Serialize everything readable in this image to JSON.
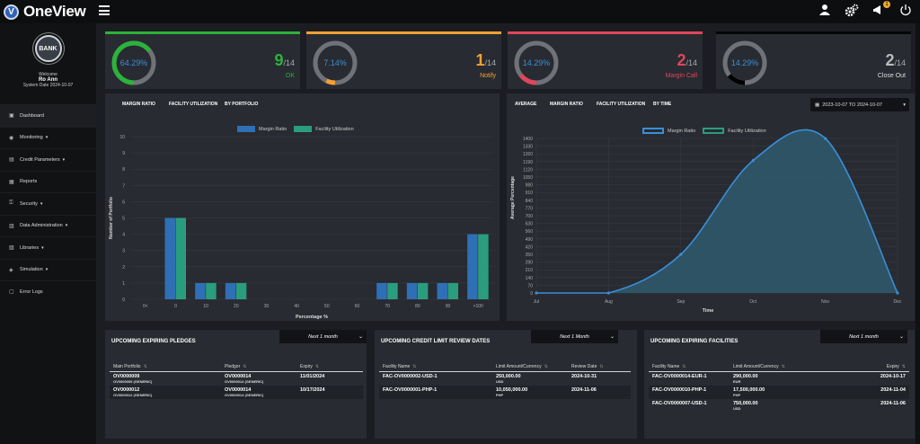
{
  "app": {
    "name": "OneView",
    "logo_letter": "V"
  },
  "topbar": {
    "notif_count": "1"
  },
  "profile": {
    "logo_text": "BANK",
    "welcome": "Welcome",
    "user": "Ro Ann",
    "system_date": "System Date 2024-10-07"
  },
  "nav": [
    {
      "label": "Dashboard",
      "icon": "▣",
      "caret": ""
    },
    {
      "label": "Monitoring",
      "icon": "◉",
      "caret": "▾"
    },
    {
      "label": "Credit Parameters",
      "icon": "▤",
      "caret": "▾"
    },
    {
      "label": "Reports",
      "icon": "▦",
      "caret": ""
    },
    {
      "label": "Security",
      "icon": "⚿",
      "caret": "▾"
    },
    {
      "label": "Data Administration",
      "icon": "▥",
      "caret": "▾"
    },
    {
      "label": "Libraries",
      "icon": "▧",
      "caret": "▾"
    },
    {
      "label": "Simulation",
      "icon": "◈",
      "caret": "▾"
    },
    {
      "label": "Error Logs",
      "icon": "▢",
      "caret": ""
    }
  ],
  "kpis": [
    {
      "pct": "64.29%",
      "count": "9",
      "total": "/14",
      "label": "OK",
      "color": "#2bb33a",
      "fraction": 0.6429
    },
    {
      "pct": "7.14%",
      "count": "1",
      "total": "/14",
      "label": "Notify",
      "color": "#f5a033",
      "fraction": 0.0714
    },
    {
      "pct": "14.29%",
      "count": "2",
      "total": "/14",
      "label": "Margin Call",
      "color": "#e0455a",
      "fraction": 0.1429
    },
    {
      "pct": "14.29%",
      "count": "2",
      "total": "/14",
      "label": "Close Out",
      "color": "#000000",
      "fraction": 0.1429
    }
  ],
  "left_chart": {
    "header": [
      "MARGIN RATIO",
      "FACILITY UTILIZATION",
      "BY PORTFOLIO"
    ],
    "legend": [
      "Margin Ratio",
      "Facility Utilization"
    ]
  },
  "right_chart": {
    "header": [
      "AVERAGE",
      "MARGIN RATIO",
      "FACILITY UTILIZATION",
      "BY TIME"
    ],
    "legend": [
      "Margin Ratio",
      "Facility Utilization"
    ],
    "date_range": "2023-10-07 TO 2024-10-07"
  },
  "chart_data": [
    {
      "type": "bar",
      "categories": [
        "0<",
        "0",
        "10",
        "20",
        "30",
        "40",
        "50",
        "60",
        "70",
        "80",
        "90",
        ">100"
      ],
      "series": [
        {
          "name": "Margin Ratio",
          "values": [
            0,
            5,
            1,
            1,
            0,
            0,
            0,
            0,
            1,
            1,
            1,
            4
          ]
        },
        {
          "name": "Facility Utilization",
          "values": [
            0,
            5,
            1,
            1,
            0,
            0,
            0,
            0,
            1,
            1,
            1,
            4
          ]
        }
      ],
      "xlabel": "Percentage %",
      "ylabel": "Number of Portfolio",
      "ylim": [
        0,
        10
      ],
      "yticks": [
        "0",
        "1",
        "2",
        "3",
        "4",
        "5",
        "6",
        "7",
        "8",
        "9",
        "10"
      ],
      "colors": [
        "#2f6fb5",
        "#2a9d7e"
      ]
    },
    {
      "type": "area",
      "x": [
        "Jul",
        "Aug",
        "Sep",
        "Oct",
        "Nov",
        "Dec"
      ],
      "series": [
        {
          "name": "Margin Ratio",
          "values": [
            0,
            0,
            350,
            1200,
            1400,
            0
          ]
        }
      ],
      "xlabel": "Time",
      "ylabel": "Average Percentage",
      "ylim": [
        0,
        1400
      ],
      "yticks": [
        "0",
        "70",
        "140",
        "210",
        "280",
        "350",
        "420",
        "490",
        "560",
        "630",
        "700",
        "770",
        "840",
        "910",
        "980",
        "1050",
        "1120",
        "1190",
        "1260",
        "1330",
        "1400"
      ],
      "colors": [
        "#3a8fd9",
        "#2e5a6e"
      ]
    }
  ],
  "pledges": {
    "title": "UPCOMING EXPIRING PLEDGES",
    "filter": "Next 1 month",
    "headers": [
      "Main Portfolio",
      "Pledgor",
      "Expiry"
    ],
    "rows": [
      {
        "c1": "OV0000009",
        "c1sub": "OV0000009 (GENERIC)",
        "c2": "OV0000014",
        "c2sub": "OV0000014 (GENERIC)",
        "c3": "11/01/2024"
      },
      {
        "c1": "OV0000012",
        "c1sub": "OV0000012 (GENERIC)",
        "c2": "OV0000014",
        "c2sub": "OV0000014 (GENERIC)",
        "c3": "10/17/2024"
      }
    ]
  },
  "review": {
    "title": "UPCOMING CREDIT LIMIT REVIEW DATES",
    "filter": "Next 1 Month",
    "headers": [
      "Facility Name",
      "Limit Amount/Currency",
      "Review Date"
    ],
    "rows": [
      {
        "c1": "FAC-OV0000002-USD-1",
        "c2": "250,000.00",
        "c2sub": "USD",
        "c3": "2024-10-31"
      },
      {
        "c1": "FAC-OV0000001-PHP-1",
        "c2": "10,050,000.00",
        "c2sub": "PHP",
        "c3": "2024-11-06"
      }
    ]
  },
  "facilities": {
    "title": "UPCOMING EXPIRING FACILITIES",
    "filter": "Next 1 month",
    "headers": [
      "Facility Name",
      "Limit Amount/Currency",
      "Expiry"
    ],
    "rows": [
      {
        "c1": "FAC-OV0000014-EUR-1",
        "c2": "290,000.00",
        "c2sub": "EUR",
        "c3": "2024-10-17"
      },
      {
        "c1": "FAC-OV0000010-PHP-1",
        "c2": "17,500,000.00",
        "c2sub": "PHP",
        "c3": "2024-11-04"
      },
      {
        "c1": "FAC-OV0000007-USD-1",
        "c2": "750,000.00",
        "c2sub": "USD",
        "c3": "2024-11-06"
      }
    ]
  }
}
